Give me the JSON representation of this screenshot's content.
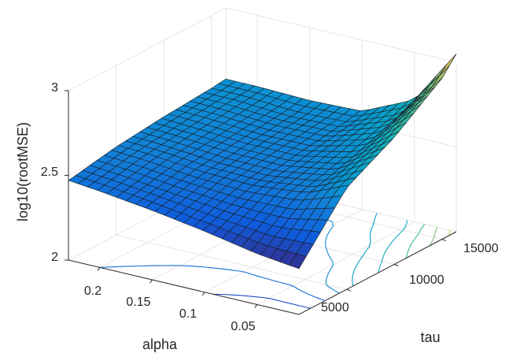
{
  "chart_data": {
    "type": "surface",
    "xlabel": "alpha",
    "ylabel": "tau",
    "zlabel": "log10(rootMSE)",
    "x_ticks": [
      "0.2",
      "0.15",
      "0.1",
      "0.05"
    ],
    "x_tick_values": [
      0.2,
      0.15,
      0.1,
      0.05
    ],
    "y_ticks": [
      "5000",
      "10000",
      "15000"
    ],
    "y_tick_values": [
      5000,
      10000,
      15000
    ],
    "z_ticks": [
      "2",
      "2.5",
      "3"
    ],
    "z_tick_values": [
      2,
      2.5,
      3
    ],
    "xlim": [
      0.01,
      0.23
    ],
    "ylim": [
      0,
      16500
    ],
    "zlim": [
      2,
      3
    ],
    "colormap": "parula",
    "grid": true,
    "contour_projection": true,
    "surface_samples": {
      "alpha": [
        0.01,
        0.05,
        0.1,
        0.15,
        0.2,
        0.23
      ],
      "tau": [
        0,
        5000,
        10000,
        15000,
        16500
      ],
      "log10_rootMSE": [
        [
          2.27,
          2.6,
          2.75,
          2.95,
          3.05
        ],
        [
          2.3,
          2.5,
          2.58,
          2.68,
          2.72
        ],
        [
          2.36,
          2.47,
          2.52,
          2.56,
          2.58
        ],
        [
          2.41,
          2.48,
          2.52,
          2.55,
          2.57
        ],
        [
          2.45,
          2.51,
          2.54,
          2.57,
          2.58
        ],
        [
          2.47,
          2.52,
          2.55,
          2.57,
          2.58
        ]
      ]
    }
  }
}
